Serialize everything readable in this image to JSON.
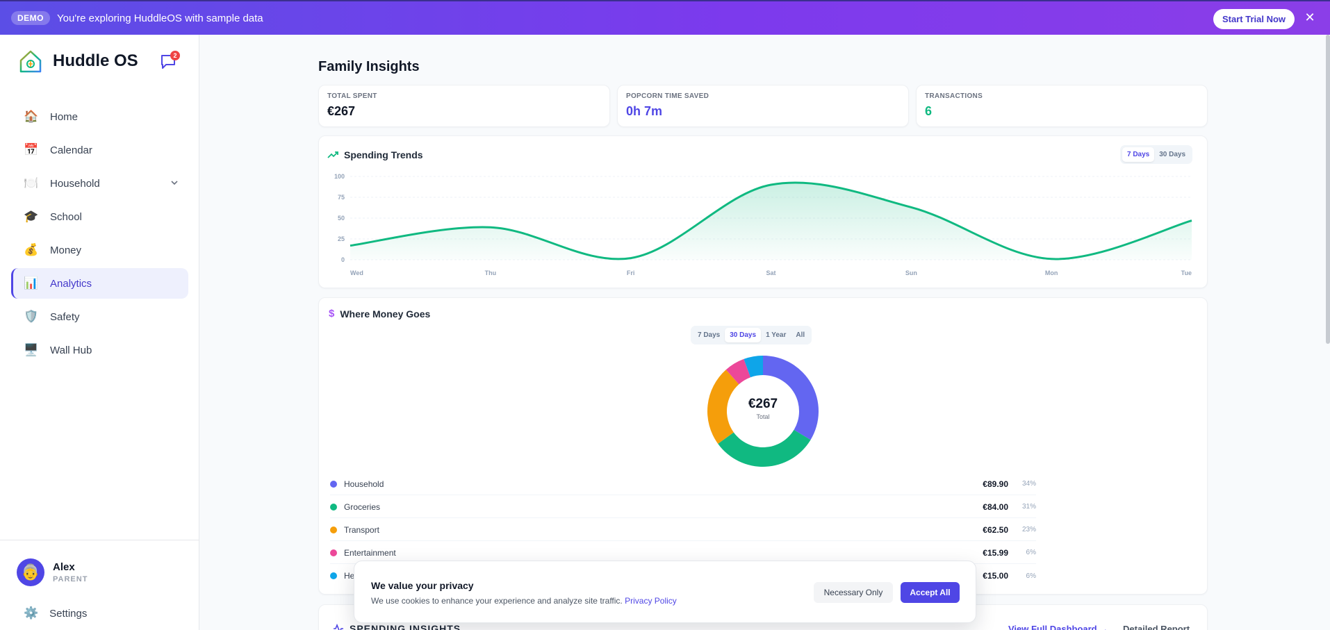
{
  "banner": {
    "badge": "DEMO",
    "text": "You're exploring HuddleOS with sample data",
    "cta": "Start Trial Now",
    "close": "✕"
  },
  "sidebar": {
    "brand": "Huddle OS",
    "chat_badge": "2",
    "items": [
      {
        "label": "Home",
        "icon": "🏠"
      },
      {
        "label": "Calendar",
        "icon": "📅"
      },
      {
        "label": "Household",
        "icon": "🍽️"
      },
      {
        "label": "School",
        "icon": "🎓"
      },
      {
        "label": "Money",
        "icon": "💰"
      },
      {
        "label": "Analytics",
        "icon": "📊"
      },
      {
        "label": "Safety",
        "icon": "🛡️"
      },
      {
        "label": "Wall Hub",
        "icon": "🖥️"
      }
    ],
    "active": "Analytics",
    "user": {
      "name": "Alex",
      "role": "PARENT",
      "avatar": "👵"
    },
    "settings": {
      "label": "Settings",
      "icon": "⚙️"
    }
  },
  "page": {
    "title": "Family Insights"
  },
  "stats": [
    {
      "label": "TOTAL SPENT",
      "value": "€267",
      "color": "#111827"
    },
    {
      "label": "POPCORN TIME SAVED",
      "value": "0h 7m",
      "color": "#4f46e5"
    },
    {
      "label": "TRANSACTIONS",
      "value": "6",
      "color": "#10b981"
    }
  ],
  "trends": {
    "title": "Spending Trends",
    "ranges": [
      "7 Days",
      "30 Days"
    ],
    "active_range": "7 Days"
  },
  "money": {
    "title": "Where Money Goes",
    "ranges": [
      "7 Days",
      "30 Days",
      "1 Year",
      "All"
    ],
    "active_range": "30 Days",
    "total": "€267",
    "total_label": "Total",
    "legend": [
      {
        "name": "Household",
        "amount": "€89.90",
        "pct": "34%",
        "color": "#6366f1"
      },
      {
        "name": "Groceries",
        "amount": "€84.00",
        "pct": "31%",
        "color": "#10b981"
      },
      {
        "name": "Transport",
        "amount": "€62.50",
        "pct": "23%",
        "color": "#f59e0b"
      },
      {
        "name": "Entertainment",
        "amount": "€15.99",
        "pct": "6%",
        "color": "#ec4899"
      },
      {
        "name": "He",
        "amount": "€15.00",
        "pct": "6%",
        "color": "#0ea5e9"
      }
    ]
  },
  "insights": {
    "title": "SPENDING INSIGHTS",
    "link1": "View Full Dashboard →",
    "link2": "Detailed Report"
  },
  "cookie": {
    "title": "We value your privacy",
    "text": "We use cookies to enhance your experience and analyze site traffic.",
    "link": "Privacy Policy",
    "necessary": "Necessary Only",
    "accept": "Accept All"
  },
  "chart_data": [
    {
      "type": "area",
      "title": "Spending Trends",
      "categories": [
        "Wed",
        "Thu",
        "Fri",
        "Sat",
        "Sun",
        "Mon",
        "Tue"
      ],
      "values": [
        17,
        39,
        2,
        90,
        63,
        1,
        47
      ],
      "ylim": [
        0,
        100
      ],
      "yticks": [
        0,
        25,
        50,
        75,
        100
      ],
      "color": "#10b981",
      "grid": true
    },
    {
      "type": "pie",
      "title": "Where Money Goes",
      "categories": [
        "Household",
        "Groceries",
        "Transport",
        "Entertainment",
        "He"
      ],
      "values": [
        89.9,
        84.0,
        62.5,
        15.99,
        15.0
      ],
      "colors": [
        "#6366f1",
        "#10b981",
        "#f59e0b",
        "#ec4899",
        "#0ea5e9"
      ]
    }
  ]
}
